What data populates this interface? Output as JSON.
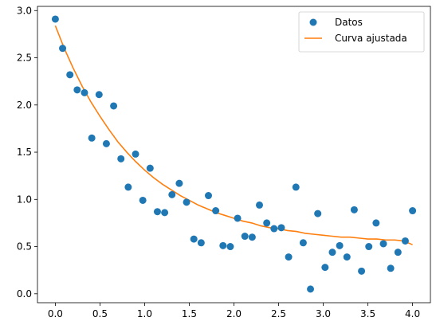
{
  "chart_data": {
    "type": "scatter",
    "title": "",
    "xlabel": "",
    "ylabel": "",
    "xlim": [
      -0.2,
      4.2
    ],
    "ylim": [
      -0.0945,
      3.0445
    ],
    "xticks": [
      0.0,
      0.5,
      1.0,
      1.5,
      2.0,
      2.5,
      3.0,
      3.5,
      4.0
    ],
    "xtick_labels": [
      "0.0",
      "0.5",
      "1.0",
      "1.5",
      "2.0",
      "2.5",
      "3.0",
      "3.5",
      "4.0"
    ],
    "yticks": [
      0.0,
      0.5,
      1.0,
      1.5,
      2.0,
      2.5,
      3.0
    ],
    "ytick_labels": [
      "0.0",
      "0.5",
      "1.0",
      "1.5",
      "2.0",
      "2.5",
      "3.0"
    ],
    "grid": false,
    "legend_position": "top-right",
    "series": [
      {
        "name": "Datos",
        "kind": "scatter",
        "color": "#1f77b4",
        "x": [
          0.0,
          0.0816,
          0.1633,
          0.2449,
          0.3265,
          0.4082,
          0.4898,
          0.5714,
          0.6531,
          0.7347,
          0.8163,
          0.898,
          0.9796,
          1.0612,
          1.1429,
          1.2245,
          1.3061,
          1.3878,
          1.4694,
          1.551,
          1.6327,
          1.7143,
          1.7959,
          1.8776,
          1.9592,
          2.0408,
          2.1224,
          2.2041,
          2.2857,
          2.3673,
          2.449,
          2.5306,
          2.6122,
          2.6939,
          2.7755,
          2.8571,
          2.9388,
          3.0204,
          3.102,
          3.1837,
          3.2653,
          3.3469,
          3.4286,
          3.5102,
          3.5918,
          3.6735,
          3.7551,
          3.8367,
          3.9184,
          4.0
        ],
        "y": [
          2.91,
          2.6,
          2.32,
          2.16,
          2.13,
          1.65,
          2.11,
          1.59,
          1.99,
          1.43,
          1.13,
          1.48,
          0.99,
          1.33,
          0.87,
          0.86,
          1.05,
          1.17,
          0.97,
          0.58,
          0.54,
          1.04,
          0.88,
          0.51,
          0.5,
          0.8,
          0.61,
          0.6,
          0.94,
          0.75,
          0.69,
          0.7,
          0.39,
          1.13,
          0.54,
          0.05,
          0.85,
          0.28,
          0.44,
          0.51,
          0.39,
          0.89,
          0.24,
          0.5,
          0.75,
          0.53,
          0.27,
          0.44,
          0.56,
          0.88
        ]
      },
      {
        "name": "Curva ajustada",
        "kind": "line",
        "color": "#ff7f0e",
        "x": [
          0.0,
          0.1,
          0.2,
          0.3,
          0.4,
          0.5,
          0.6,
          0.7,
          0.8,
          0.9,
          1.0,
          1.1,
          1.2,
          1.3,
          1.4,
          1.5,
          1.6,
          1.7,
          1.8,
          1.9,
          2.0,
          2.1,
          2.2,
          2.3,
          2.4,
          2.5,
          2.6,
          2.7,
          2.8,
          2.9,
          3.0,
          3.1,
          3.2,
          3.3,
          3.4,
          3.5,
          3.6,
          3.7,
          3.8,
          3.9,
          4.0
        ],
        "y": [
          2.84,
          2.6,
          2.39,
          2.2,
          2.03,
          1.88,
          1.74,
          1.61,
          1.5,
          1.4,
          1.31,
          1.23,
          1.16,
          1.1,
          1.04,
          0.99,
          0.94,
          0.9,
          0.86,
          0.83,
          0.8,
          0.77,
          0.75,
          0.72,
          0.7,
          0.69,
          0.67,
          0.66,
          0.64,
          0.63,
          0.62,
          0.61,
          0.6,
          0.6,
          0.59,
          0.58,
          0.58,
          0.57,
          0.57,
          0.56,
          0.52
        ]
      }
    ]
  }
}
